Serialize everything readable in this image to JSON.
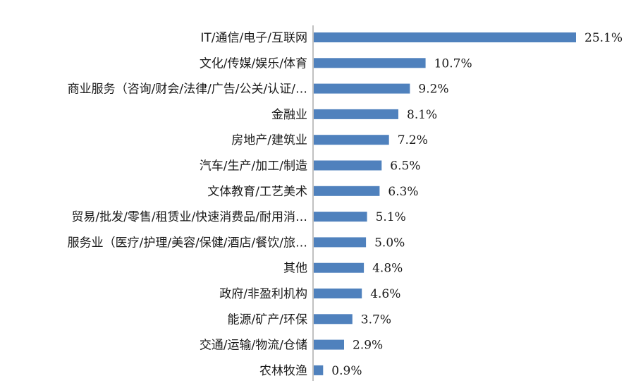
{
  "chart_data": {
    "type": "bar",
    "orientation": "horizontal",
    "categories": [
      "IT/通信/电子/互联网",
      "文化/传媒/娱乐/体育",
      "商业服务（咨询/财会/法律/广告/公关/认证/…",
      "金融业",
      "房地产/建筑业",
      "汽车/生产/加工/制造",
      "文体教育/工艺美术",
      "贸易/批发/零售/租赁业/快速消费品/耐用消…",
      "服务业（医疗/护理/美容/保健/酒店/餐饮/旅…",
      "其他",
      "政府/非盈利机构",
      "能源/矿产/环保",
      "交通/运输/物流/仓储",
      "农林牧渔"
    ],
    "values": [
      25.1,
      10.7,
      9.2,
      8.1,
      7.2,
      6.5,
      6.3,
      5.1,
      5.0,
      4.8,
      4.6,
      3.7,
      2.9,
      0.9
    ],
    "data_labels": [
      "25.1%",
      "10.7%",
      "9.2%",
      "8.1%",
      "7.2%",
      "6.5%",
      "6.3%",
      "5.1%",
      "5.0%",
      "4.8%",
      "4.6%",
      "3.7%",
      "2.9%",
      "0.9%"
    ],
    "title": "",
    "xlabel": "",
    "ylabel": "",
    "xlim": [
      0,
      25.1
    ],
    "grid": false,
    "legend": "none",
    "bar_color": "#4f81bd",
    "axis_color": "#808080",
    "text_color": "#1a1a1a"
  }
}
